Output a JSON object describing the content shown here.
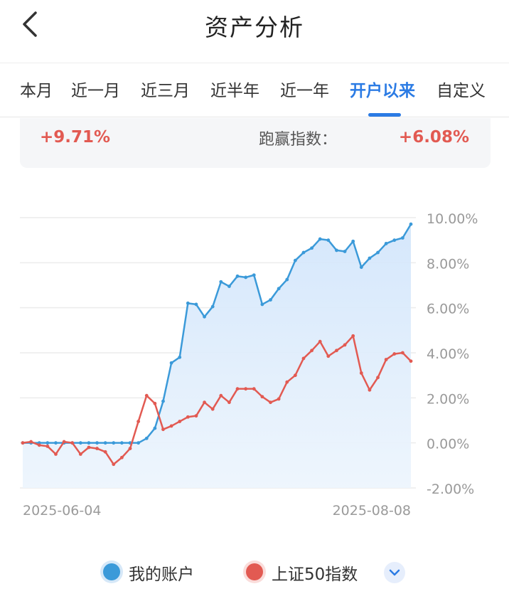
{
  "header": {
    "title": "资产分析",
    "back_icon": "chevron-left-icon"
  },
  "tabs": [
    {
      "label": "本月",
      "active": false
    },
    {
      "label": "近一月",
      "active": false
    },
    {
      "label": "近三月",
      "active": false
    },
    {
      "label": "近半年",
      "active": false
    },
    {
      "label": "近一年",
      "active": false
    },
    {
      "label": "开户以来",
      "active": true
    },
    {
      "label": "自定义",
      "active": false
    }
  ],
  "summary": {
    "return_value": "+9.71%",
    "beat_label": "跑赢指数：",
    "beat_value": "+6.08%"
  },
  "colors": {
    "accent": "#2b7be4",
    "account_line": "#3b9ad9",
    "index_line": "#e25a52",
    "gain": "#e25a52"
  },
  "chart_data": {
    "type": "line",
    "title": "",
    "xlabel": "",
    "ylabel": "",
    "ylim": [
      -2,
      10
    ],
    "y_ticks": [
      "10.00%",
      "8.00%",
      "6.00%",
      "4.00%",
      "2.00%",
      "0.00%",
      "-2.00%"
    ],
    "y_tick_values": [
      10,
      8,
      6,
      4,
      2,
      0,
      -2
    ],
    "x_start_label": "2025-06-04",
    "x_end_label": "2025-08-08",
    "grid": true,
    "legend_position": "bottom",
    "series": [
      {
        "name": "我的账户",
        "color": "#3b9ad9",
        "fill": true,
        "values": [
          0,
          0,
          0,
          0,
          0,
          0,
          0,
          0,
          0,
          0,
          0,
          0,
          0,
          0,
          0,
          0.2,
          0.65,
          1.85,
          3.55,
          3.8,
          6.2,
          6.15,
          5.6,
          6.05,
          7.15,
          6.95,
          7.4,
          7.35,
          7.45,
          6.15,
          6.35,
          6.85,
          7.25,
          8.1,
          8.45,
          8.65,
          9.05,
          9.0,
          8.55,
          8.5,
          8.95,
          7.8,
          8.2,
          8.45,
          8.85,
          9.0,
          9.1,
          9.71
        ]
      },
      {
        "name": "上证50指数",
        "color": "#e25a52",
        "fill": false,
        "values": [
          0,
          0.05,
          -0.1,
          -0.15,
          -0.5,
          0.05,
          0.0,
          -0.5,
          -0.2,
          -0.25,
          -0.4,
          -0.95,
          -0.65,
          -0.25,
          0.95,
          2.1,
          1.75,
          0.6,
          0.75,
          0.95,
          1.15,
          1.2,
          1.8,
          1.5,
          2.1,
          1.8,
          2.4,
          2.4,
          2.4,
          2.05,
          1.8,
          1.95,
          2.7,
          3.0,
          3.75,
          4.1,
          4.5,
          3.85,
          4.1,
          4.35,
          4.75,
          3.1,
          2.35,
          2.9,
          3.7,
          3.95,
          4.0,
          3.63
        ]
      }
    ]
  },
  "legend": {
    "items": [
      {
        "label": "我的账户",
        "color": "#3b9ad9"
      },
      {
        "label": "上证50指数",
        "color": "#e25a52"
      }
    ],
    "expand_icon": "chevron-down-icon"
  }
}
